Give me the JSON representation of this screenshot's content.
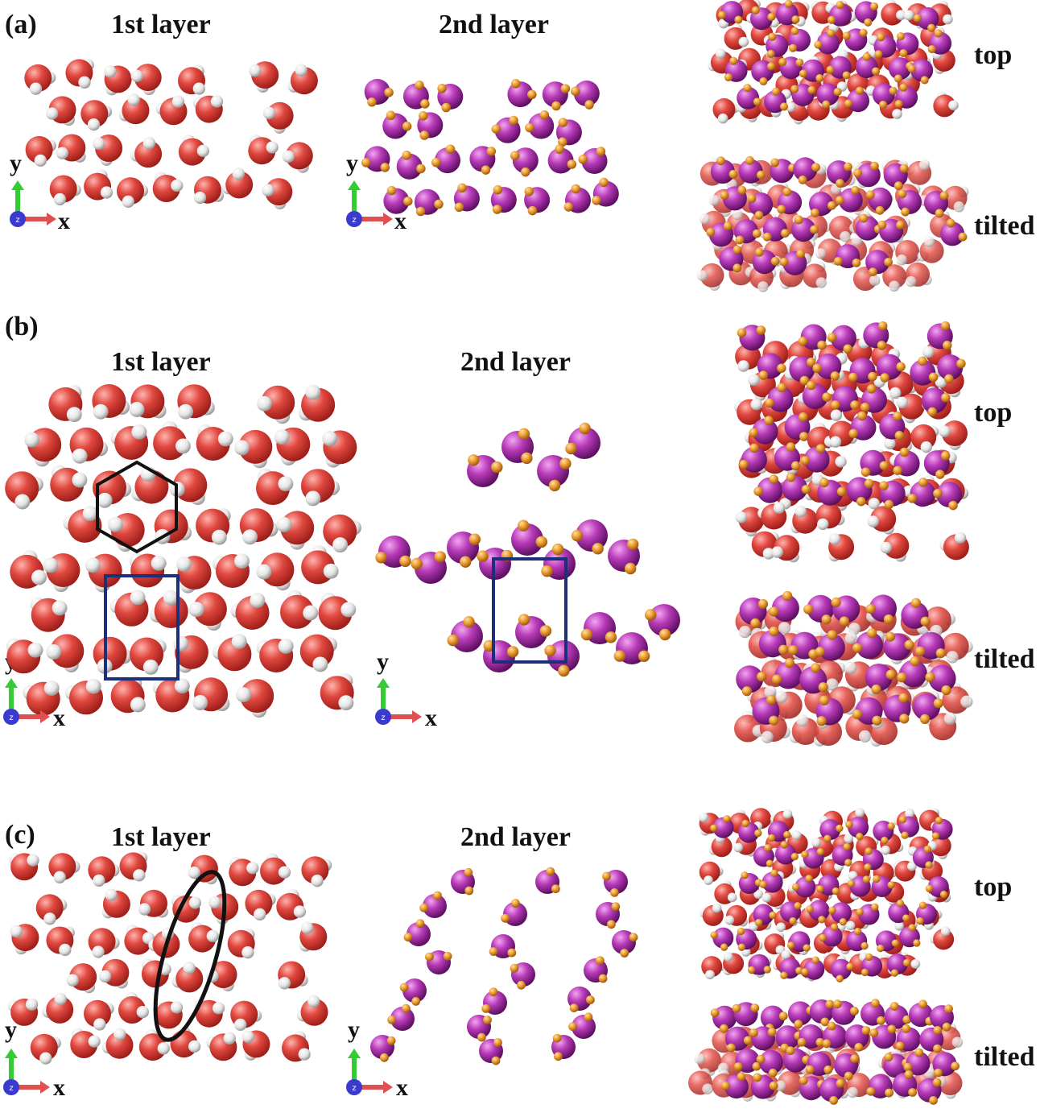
{
  "panels": [
    {
      "label": "(a)",
      "first_layer_title": "1st layer",
      "second_layer_title": "2nd layer",
      "top_label": "top",
      "tilted_label": "tilted"
    },
    {
      "label": "(b)",
      "first_layer_title": "1st layer",
      "second_layer_title": "2nd layer",
      "top_label": "top",
      "tilted_label": "tilted"
    },
    {
      "label": "(c)",
      "first_layer_title": "1st layer",
      "second_layer_title": "2nd layer",
      "top_label": "top",
      "tilted_label": "tilted"
    }
  ],
  "axes": {
    "x": "x",
    "y": "y",
    "z": "z"
  },
  "colors": {
    "oxygen_water": "#d9463f",
    "hydrogen_water": "#f2f2f2",
    "oxygen_layer2": "#b23ab5",
    "hydrogen_layer2": "#e8962a",
    "hexagon_outline": "#111111",
    "unit_cell_outline": "#1b2f7a",
    "ellipse_outline": "#111111",
    "axis_x": "#e05050",
    "axis_y": "#33cc33",
    "axis_z": "#3a3ad0"
  },
  "icons": [
    "xyz-axis-icon",
    "hexagon-marker",
    "rectangle-marker",
    "ellipse-marker"
  ]
}
